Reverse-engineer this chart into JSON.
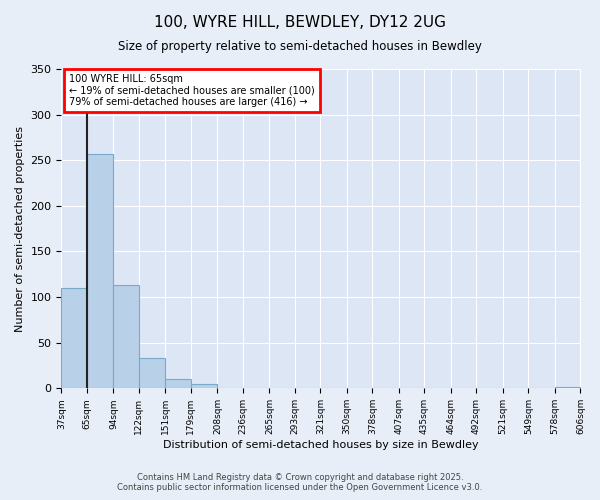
{
  "title": "100, WYRE HILL, BEWDLEY, DY12 2UG",
  "subtitle": "Size of property relative to semi-detached houses in Bewdley",
  "xlabel": "Distribution of semi-detached houses by size in Bewdley",
  "ylabel": "Number of semi-detached properties",
  "bin_labels": [
    "37sqm",
    "65sqm",
    "94sqm",
    "122sqm",
    "151sqm",
    "179sqm",
    "208sqm",
    "236sqm",
    "265sqm",
    "293sqm",
    "321sqm",
    "350sqm",
    "378sqm",
    "407sqm",
    "435sqm",
    "464sqm",
    "492sqm",
    "521sqm",
    "549sqm",
    "578sqm",
    "606sqm"
  ],
  "bin_edges": [
    37,
    65,
    94,
    122,
    151,
    179,
    208,
    236,
    265,
    293,
    321,
    350,
    378,
    407,
    435,
    464,
    492,
    521,
    549,
    578,
    606
  ],
  "bar_values": [
    110,
    257,
    113,
    33,
    10,
    5,
    0,
    0,
    0,
    0,
    0,
    0,
    0,
    0,
    0,
    0,
    0,
    0,
    0,
    2
  ],
  "bar_color": "#b8d0e8",
  "bar_edge_color": "#7aaac8",
  "property_size": 65,
  "property_label": "100 WYRE HILL: 65sqm",
  "vline_color": "#222222",
  "box_text_line1": "← 19% of semi-detached houses are smaller (100)",
  "box_text_line2": "79% of semi-detached houses are larger (416) →",
  "box_edge_color": "red",
  "ylim": [
    0,
    350
  ],
  "yticks": [
    0,
    50,
    100,
    150,
    200,
    250,
    300,
    350
  ],
  "footer_line1": "Contains HM Land Registry data © Crown copyright and database right 2025.",
  "footer_line2": "Contains public sector information licensed under the Open Government Licence v3.0.",
  "bg_color": "#e8eef8",
  "plot_bg_color": "#dce6f5",
  "grid_color": "#ffffff"
}
